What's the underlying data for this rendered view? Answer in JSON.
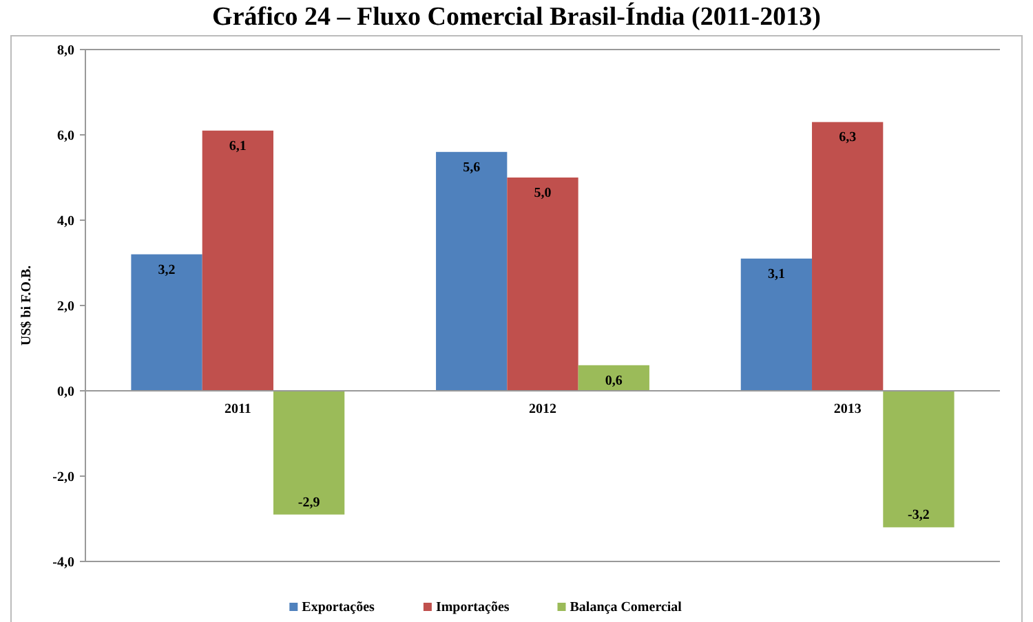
{
  "chart_data": {
    "type": "bar",
    "title": "Gráfico 24 – Fluxo Comercial Brasil-Índia (2011-2013)",
    "ylabel": "US$ bi F.O.B.",
    "categories": [
      "2011",
      "2012",
      "2013"
    ],
    "series": [
      {
        "name": "Exportações",
        "color": "#4f81bd",
        "values": [
          3.2,
          5.6,
          3.1
        ],
        "value_labels": [
          "3,2",
          "5,6",
          "3,1"
        ]
      },
      {
        "name": "Importações",
        "color": "#c0504d",
        "values": [
          6.1,
          5.0,
          6.3
        ],
        "value_labels": [
          "6,1",
          "5,0",
          "6,3"
        ]
      },
      {
        "name": "Balança Comercial",
        "color": "#9bbb59",
        "values": [
          -2.9,
          0.6,
          -3.2
        ],
        "value_labels": [
          "-2,9",
          "0,6",
          "-3,2"
        ]
      }
    ],
    "ylim": [
      -4,
      8
    ],
    "yticks": [
      {
        "value": -4,
        "label": "-4,0"
      },
      {
        "value": -2,
        "label": "-2,0"
      },
      {
        "value": 0,
        "label": "0,0"
      },
      {
        "value": 2,
        "label": "2,0"
      },
      {
        "value": 4,
        "label": "4,0"
      },
      {
        "value": 6,
        "label": "6,0"
      },
      {
        "value": 8,
        "label": "8,0"
      }
    ],
    "legend": "bottom"
  }
}
